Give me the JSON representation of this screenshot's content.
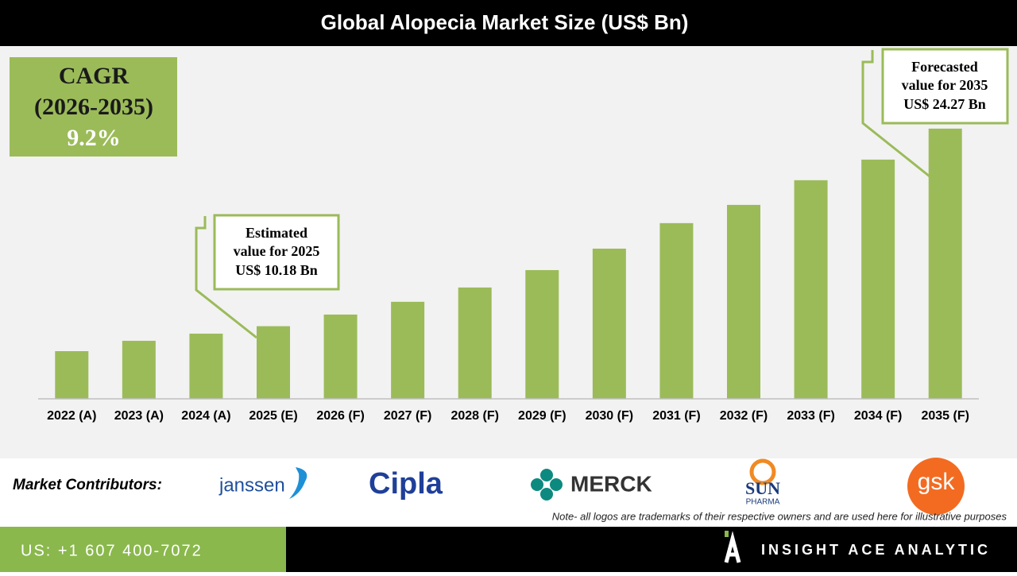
{
  "chart_data": {
    "type": "bar",
    "title": "Global Alopecia Market Size (US$ Bn)",
    "categories": [
      "2022 (A)",
      "2023 (A)",
      "2024 (A)",
      "2025 (E)",
      "2026 (F)",
      "2027 (F)",
      "2028 (F)",
      "2029 (F)",
      "2030 (F)",
      "2031 (F)",
      "2032 (F)",
      "2033 (F)",
      "2034 (F)",
      "2035 (F)"
    ],
    "values": [
      8.4,
      9.14,
      9.65,
      10.18,
      11.01,
      11.92,
      12.94,
      14.18,
      15.71,
      17.53,
      18.83,
      20.59,
      22.06,
      24.27
    ],
    "color": "#9bbb59",
    "ylim": [
      5,
      25
    ],
    "annotations": {
      "cagr": [
        "CAGR",
        "(2026-2035)",
        "9.2%"
      ],
      "estimated": [
        "Estimated",
        "value for 2025",
        "US$ 10.18 Bn"
      ],
      "forecasted": [
        "Forecasted",
        "value for 2035",
        "US$ 24.27 Bn"
      ]
    }
  },
  "contributors": {
    "label": "Market Contributors:",
    "logos": [
      "janssen",
      "Cipla",
      "MERCK",
      "SUN",
      "PHARMA",
      "gsk"
    ],
    "note": "Note- all logos are trademarks of their respective owners and are used here for illustrative purposes"
  },
  "footer": {
    "phone": "US: +1 607 400-7072",
    "brand": "INSIGHT ACE ANALYTIC"
  }
}
